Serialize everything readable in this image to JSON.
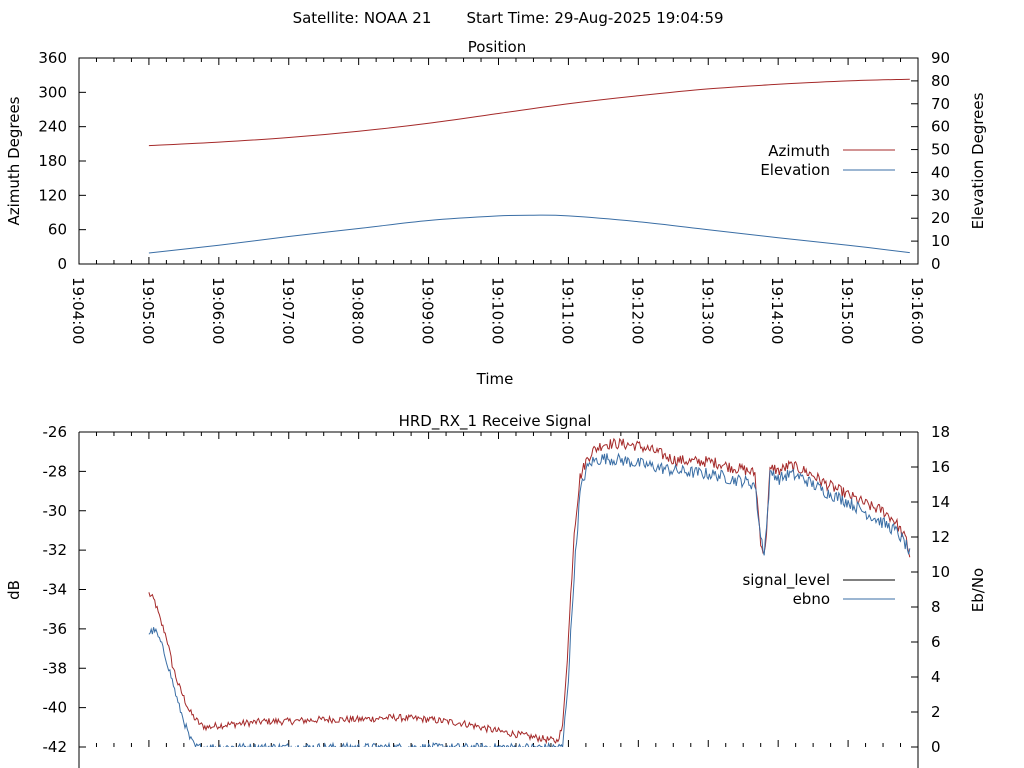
{
  "header": {
    "satellite": "Satellite: NOAA 21",
    "start_time": "Start Time: 29-Aug-2025 19:04:59"
  },
  "chart_data": [
    {
      "type": "line",
      "title": "Position",
      "xlabel": "Time",
      "ylabel": "Azimuth Degrees",
      "y2label": "Elevation Degrees",
      "xlim": [
        "19:04:00",
        "19:16:00"
      ],
      "ylim": [
        0,
        360
      ],
      "y2lim": [
        0,
        90
      ],
      "x_ticks": [
        "19:04:00",
        "19:05:00",
        "19:06:00",
        "19:07:00",
        "19:08:00",
        "19:09:00",
        "19:10:00",
        "19:11:00",
        "19:12:00",
        "19:13:00",
        "19:14:00",
        "19:15:00",
        "19:16:00"
      ],
      "y_ticks": [
        "0",
        "60",
        "120",
        "180",
        "240",
        "300",
        "360"
      ],
      "y2_ticks": [
        "0",
        "10",
        "20",
        "30",
        "40",
        "50",
        "60",
        "70",
        "80",
        "90"
      ],
      "legend_position": "right",
      "series": [
        {
          "name": "Azimuth",
          "axis": "y",
          "color": "#a52a2a",
          "x": [
            "19:05:00",
            "19:06:00",
            "19:07:00",
            "19:08:00",
            "19:09:00",
            "19:10:00",
            "19:11:00",
            "19:12:00",
            "19:13:00",
            "19:14:00",
            "19:15:00",
            "19:15:53"
          ],
          "values": [
            207,
            213,
            221,
            232,
            246,
            263,
            280,
            294,
            306,
            314,
            320,
            323
          ]
        },
        {
          "name": "Elevation",
          "axis": "y2",
          "color": "#3a6ea5",
          "x": [
            "19:05:00",
            "19:06:00",
            "19:07:00",
            "19:08:00",
            "19:09:00",
            "19:10:00",
            "19:10:30",
            "19:11:00",
            "19:12:00",
            "19:13:00",
            "19:14:00",
            "19:15:00",
            "19:15:53"
          ],
          "values": [
            4.8,
            8.2,
            12.0,
            15.5,
            19.0,
            21.0,
            21.3,
            21.0,
            18.5,
            15.0,
            11.5,
            8.2,
            5.0
          ]
        }
      ]
    },
    {
      "type": "line",
      "title": "HRD_RX_1 Receive Signal",
      "xlabel": "",
      "ylabel": "dB",
      "y2label": "Eb/No",
      "xlim": [
        "19:04:00",
        "19:16:00"
      ],
      "ylim": [
        -42,
        -26
      ],
      "y2lim": [
        0,
        18
      ],
      "y_ticks": [
        "-42",
        "-40",
        "-38",
        "-36",
        "-34",
        "-32",
        "-30",
        "-28",
        "-26"
      ],
      "y2_ticks": [
        "0",
        "2",
        "4",
        "6",
        "8",
        "10",
        "12",
        "14",
        "16",
        "18"
      ],
      "legend_position": "right",
      "series": [
        {
          "name": "signal_level",
          "axis": "y",
          "color": "#a52a2a",
          "legend_color": "#000000",
          "x": [
            "19:05:00",
            "19:05:05",
            "19:05:10",
            "19:05:15",
            "19:05:20",
            "19:05:25",
            "19:05:30",
            "19:05:35",
            "19:05:40",
            "19:05:45",
            "19:05:50",
            "19:06:00",
            "19:06:20",
            "19:06:40",
            "19:07:00",
            "19:07:30",
            "19:08:00",
            "19:08:30",
            "19:09:00",
            "19:09:30",
            "19:10:00",
            "19:10:30",
            "19:10:50",
            "19:10:55",
            "19:11:00",
            "19:11:05",
            "19:11:10",
            "19:11:15",
            "19:11:20",
            "19:11:30",
            "19:11:45",
            "19:12:00",
            "19:12:15",
            "19:12:30",
            "19:12:45",
            "19:13:00",
            "19:13:10",
            "19:13:20",
            "19:13:30",
            "19:13:40",
            "19:13:45",
            "19:13:48",
            "19:13:50",
            "19:13:53",
            "19:13:56",
            "19:14:00",
            "19:14:10",
            "19:14:20",
            "19:14:30",
            "19:14:40",
            "19:15:00",
            "19:15:10",
            "19:15:20",
            "19:15:30",
            "19:15:40",
            "19:15:45",
            "19:15:50",
            "19:15:53"
          ],
          "values": [
            -34.2,
            -34.6,
            -35.6,
            -36.4,
            -37.8,
            -38.8,
            -39.5,
            -40.2,
            -40.6,
            -40.9,
            -41.0,
            -40.9,
            -40.8,
            -40.7,
            -40.7,
            -40.6,
            -40.6,
            -40.5,
            -40.6,
            -40.8,
            -41.2,
            -41.5,
            -41.7,
            -41.0,
            -36.5,
            -31.0,
            -28.3,
            -27.5,
            -27.0,
            -26.6,
            -26.6,
            -26.7,
            -27.0,
            -27.4,
            -27.5,
            -27.5,
            -27.6,
            -27.8,
            -27.9,
            -28.1,
            -31.5,
            -32.3,
            -31.0,
            -28.0,
            -27.8,
            -28.0,
            -27.7,
            -27.9,
            -28.2,
            -28.6,
            -29.2,
            -29.5,
            -29.8,
            -30.0,
            -30.5,
            -31.0,
            -31.5,
            -32.3
          ]
        },
        {
          "name": "ebno",
          "axis": "y2",
          "color": "#3a6ea5",
          "x": [
            "19:05:00",
            "19:05:05",
            "19:05:10",
            "19:05:15",
            "19:05:20",
            "19:05:25",
            "19:05:30",
            "19:05:35",
            "19:05:40",
            "19:10:55",
            "19:11:00",
            "19:11:05",
            "19:11:10",
            "19:11:15",
            "19:11:20",
            "19:11:30",
            "19:11:45",
            "19:12:00",
            "19:12:15",
            "19:12:30",
            "19:12:45",
            "19:13:00",
            "19:13:10",
            "19:13:20",
            "19:13:30",
            "19:13:40",
            "19:13:45",
            "19:13:48",
            "19:13:50",
            "19:13:53",
            "19:13:56",
            "19:14:00",
            "19:14:10",
            "19:14:20",
            "19:14:30",
            "19:14:40",
            "19:15:00",
            "19:15:10",
            "19:15:20",
            "19:15:30",
            "19:15:40",
            "19:15:45",
            "19:15:50",
            "19:15:53"
          ],
          "values": [
            6.5,
            6.7,
            6.0,
            5.0,
            3.8,
            2.5,
            1.5,
            0.5,
            0.0,
            0.0,
            4.0,
            10.0,
            14.5,
            15.8,
            16.3,
            16.5,
            16.4,
            16.2,
            16.0,
            15.8,
            15.7,
            15.6,
            15.5,
            15.3,
            15.2,
            15.0,
            12.0,
            11.2,
            12.5,
            15.5,
            15.7,
            15.3,
            15.6,
            15.4,
            15.0,
            14.6,
            14.0,
            13.6,
            13.2,
            12.8,
            12.4,
            12.0,
            11.5,
            11.0
          ]
        }
      ]
    }
  ]
}
